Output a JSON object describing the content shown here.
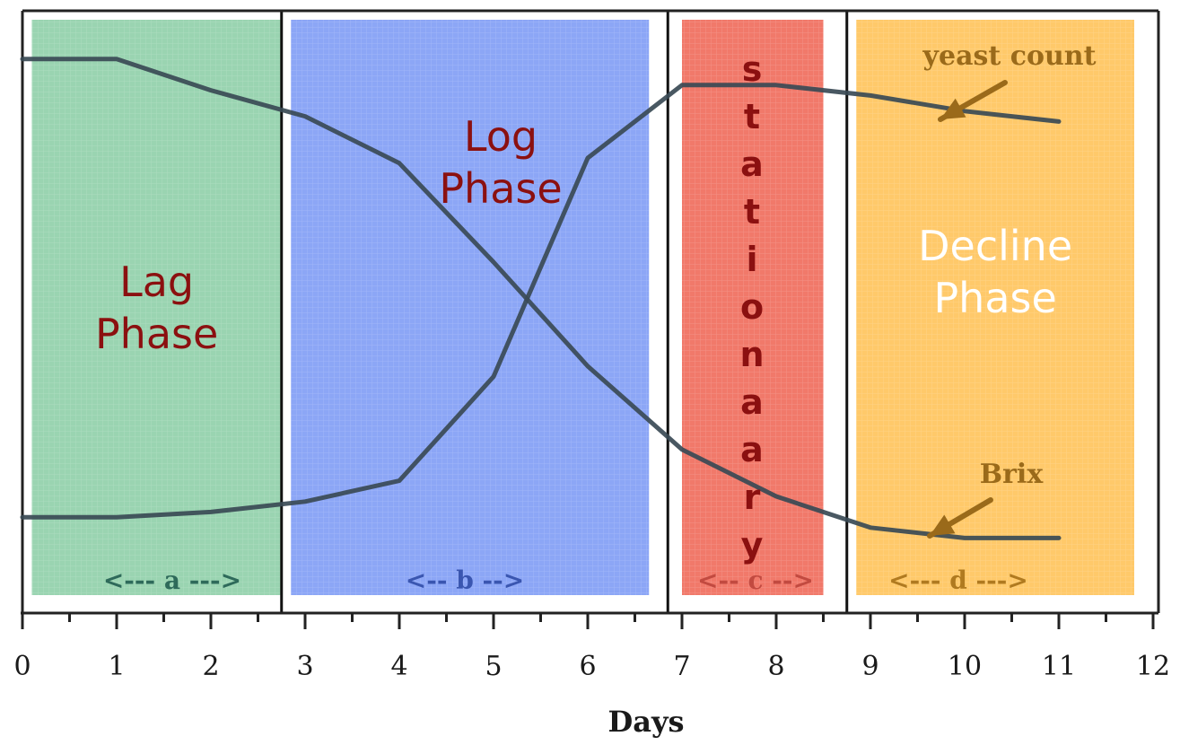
{
  "chart_data": {
    "type": "line",
    "xlabel": "Days",
    "ylabel": "",
    "xlim": [
      0,
      12
    ],
    "ylim": [
      0,
      100
    ],
    "x_ticks": [
      "0",
      "1",
      "2",
      "3",
      "4",
      "5",
      "6",
      "7",
      "8",
      "9",
      "10",
      "11",
      "12"
    ],
    "grid": false,
    "series": [
      {
        "name": "yeast count",
        "x": [
          0,
          1,
          2,
          3,
          4,
          5,
          6,
          7,
          8,
          9,
          10,
          11
        ],
        "y": [
          11,
          11,
          12,
          14,
          18,
          38,
          80,
          94,
          94,
          92,
          89,
          87
        ],
        "color": "#3a4a55"
      },
      {
        "name": "Brix",
        "x": [
          0,
          1,
          2,
          3,
          4,
          5,
          6,
          7,
          8,
          9,
          10,
          11
        ],
        "y": [
          99,
          99,
          93,
          88,
          79,
          60,
          40,
          24,
          15,
          9,
          7,
          7
        ],
        "color": "#3a4a55"
      }
    ],
    "phases": [
      {
        "id": "a",
        "label_lines": [
          "Lag",
          "Phase"
        ],
        "range_label": "<--- a --->",
        "x_start": 0.1,
        "x_end": 2.75,
        "color": "#8fcfa8",
        "text_color": "#8b1010"
      },
      {
        "id": "b",
        "label_lines": [
          "Log",
          "Phase"
        ],
        "range_label": "<-- b -->",
        "x_start": 2.85,
        "x_end": 6.65,
        "color": "#7f9cf5",
        "text_color": "#8b1010"
      },
      {
        "id": "c",
        "vertical_label": "stationaary",
        "range_label": "<-- c -->",
        "x_start": 7.0,
        "x_end": 8.5,
        "color": "#f06a5a",
        "text_color": "#8b1010"
      },
      {
        "id": "d",
        "label_lines": [
          "Decline",
          "Phase"
        ],
        "range_label": "<--- d --->",
        "x_start": 8.85,
        "x_end": 11.8,
        "color": "#ffc35a",
        "text_color": "#ffffff"
      }
    ],
    "dividers_x": [
      2.75,
      6.85,
      8.75
    ],
    "annotation_color": "#9a6a1a"
  }
}
